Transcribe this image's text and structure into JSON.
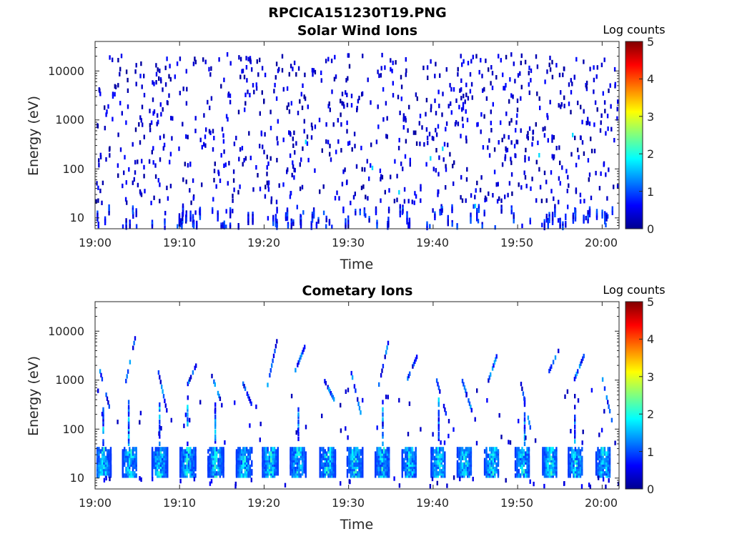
{
  "figure": {
    "title": "RPCICA151230T19.PNG"
  },
  "chart_data": [
    {
      "type": "heatmap",
      "title": "Solar Wind Ions",
      "xlabel": "Time",
      "ylabel": "Energy (eV)",
      "x_ticks": [
        "19:00",
        "19:10",
        "19:20",
        "19:30",
        "19:40",
        "19:50",
        "20:00"
      ],
      "x_range": [
        "19:00",
        "20:02"
      ],
      "y_ticks": [
        "10",
        "100",
        "1000",
        "10000"
      ],
      "y_range": [
        6,
        40000
      ],
      "y_scale": "log",
      "colorbar": {
        "title": "Log counts",
        "ticks": [
          "0",
          "1",
          "2",
          "3",
          "4",
          "5"
        ],
        "range": [
          0,
          5
        ],
        "colormap": "jet"
      },
      "pattern": "sparse counts (log ~0-1.5) scattered across 20 eV-20 keV; denser streaks below 50 eV",
      "colors": {
        "background": "#ffffff",
        "sparse": "#00008f"
      }
    },
    {
      "type": "heatmap",
      "title": "Cometary Ions",
      "xlabel": "Time",
      "ylabel": "Energy (eV)",
      "x_ticks": [
        "19:00",
        "19:10",
        "19:20",
        "19:30",
        "19:40",
        "19:50",
        "20:00"
      ],
      "x_range": [
        "19:00",
        "20:02"
      ],
      "y_ticks": [
        "10",
        "100",
        "1000",
        "10000"
      ],
      "y_range": [
        6,
        40000
      ],
      "y_scale": "log",
      "colorbar": {
        "title": "Log counts",
        "ticks": [
          "0",
          "1",
          "2",
          "3",
          "4",
          "5"
        ],
        "range": [
          0,
          5
        ],
        "colormap": "jet"
      },
      "pattern": "periodic bursts every ~3.3 min at 10-45 eV (log ~1-2); 500 eV-5 keV sweeping streaks; occasional columns 50-700 eV",
      "colors": {
        "background": "#ffffff",
        "low": "#00008f",
        "mid": "#00c8ff"
      }
    }
  ]
}
